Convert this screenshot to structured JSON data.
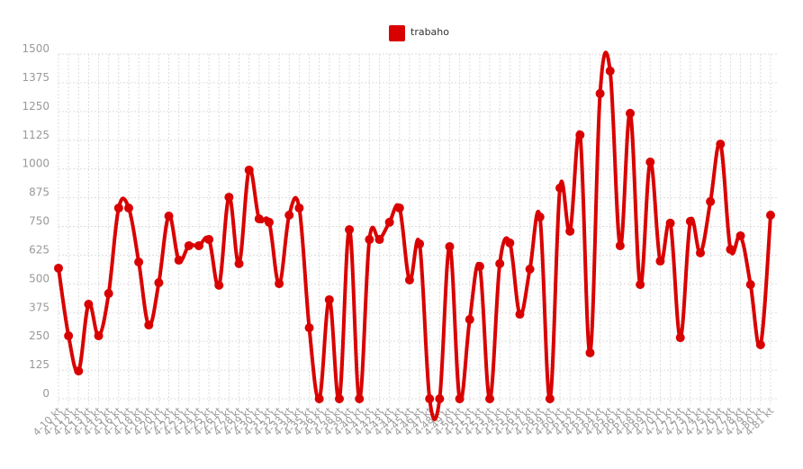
{
  "chart_data": {
    "type": "line",
    "categories": [
      "4-10 kt",
      "4-11 kt",
      "4-12 kt",
      "4-13 kt",
      "4-14 kt",
      "4-15 kt",
      "4-16 kt",
      "4-17 kt",
      "4-18 kt",
      "4-19 kt",
      "4-20 kt",
      "4-21 kt",
      "4-22 kt",
      "4-23 kt",
      "4-24 kt",
      "4-25 kt",
      "4-26 kt",
      "4-27 kt",
      "4-28 kt",
      "4-29 kt",
      "4-30 kt",
      "4-31 kt",
      "4-32 kt",
      "4-33 kt",
      "4-34 kt",
      "4-35 kt",
      "4-36 kt",
      "4-37 kt",
      "4-38 kt",
      "4-39 kt",
      "4-40 kt",
      "4-41 kt",
      "4-42 kt",
      "4-43 kt",
      "4-44 kt",
      "4-45 kt",
      "4-46 kt",
      "4-47 kt",
      "4-48 kt",
      "4-49 kt",
      "4-50 kt",
      "4-51 kt",
      "4-52 kt",
      "4-53 kt",
      "4-54 kt",
      "4-55 kt",
      "4-56 kt",
      "4-57 kt",
      "4-58 kt",
      "4-59 kt",
      "4-60 kt",
      "4-61 kt",
      "4-62 kt",
      "4-63 kt",
      "4-64 kt",
      "4-65 kt",
      "4-66 kt",
      "4-67 kt",
      "4-68 kt",
      "4-69 kt",
      "4-70 kt",
      "4-71 kt",
      "4-72 kt",
      "4-73 kt",
      "4-74 kt",
      "4-75 kt",
      "4-76 kt",
      "4-77 kt",
      "4-78 kt",
      "4-79 kt",
      "4-80 kt",
      "4-81 kt"
    ],
    "series": [
      {
        "name": "trabaho",
        "color": "#d90000",
        "values": [
          568,
          274,
          121,
          411,
          274,
          458,
          830,
          830,
          595,
          321,
          505,
          795,
          603,
          666,
          666,
          693,
          494,
          877,
          588,
          995,
          783,
          768,
          501,
          799,
          830,
          309,
          0,
          431,
          0,
          736,
          0,
          693,
          693,
          768,
          830,
          517,
          674,
          0,
          0,
          662,
          0,
          345,
          576,
          0,
          588,
          678,
          368,
          564,
          791,
          0,
          917,
          729,
          1148,
          200,
          1328,
          1426,
          666,
          1242,
          497,
          1030,
          599,
          764,
          266,
          772,
          635,
          858,
          1108,
          650,
          709,
          497,
          235,
          799
        ]
      }
    ],
    "ylim": [
      0,
      1500
    ],
    "yticks": [
      0,
      125,
      250,
      375,
      500,
      625,
      750,
      875,
      1000,
      1125,
      1250,
      1375,
      1500
    ],
    "grid": true,
    "legend": "top"
  }
}
